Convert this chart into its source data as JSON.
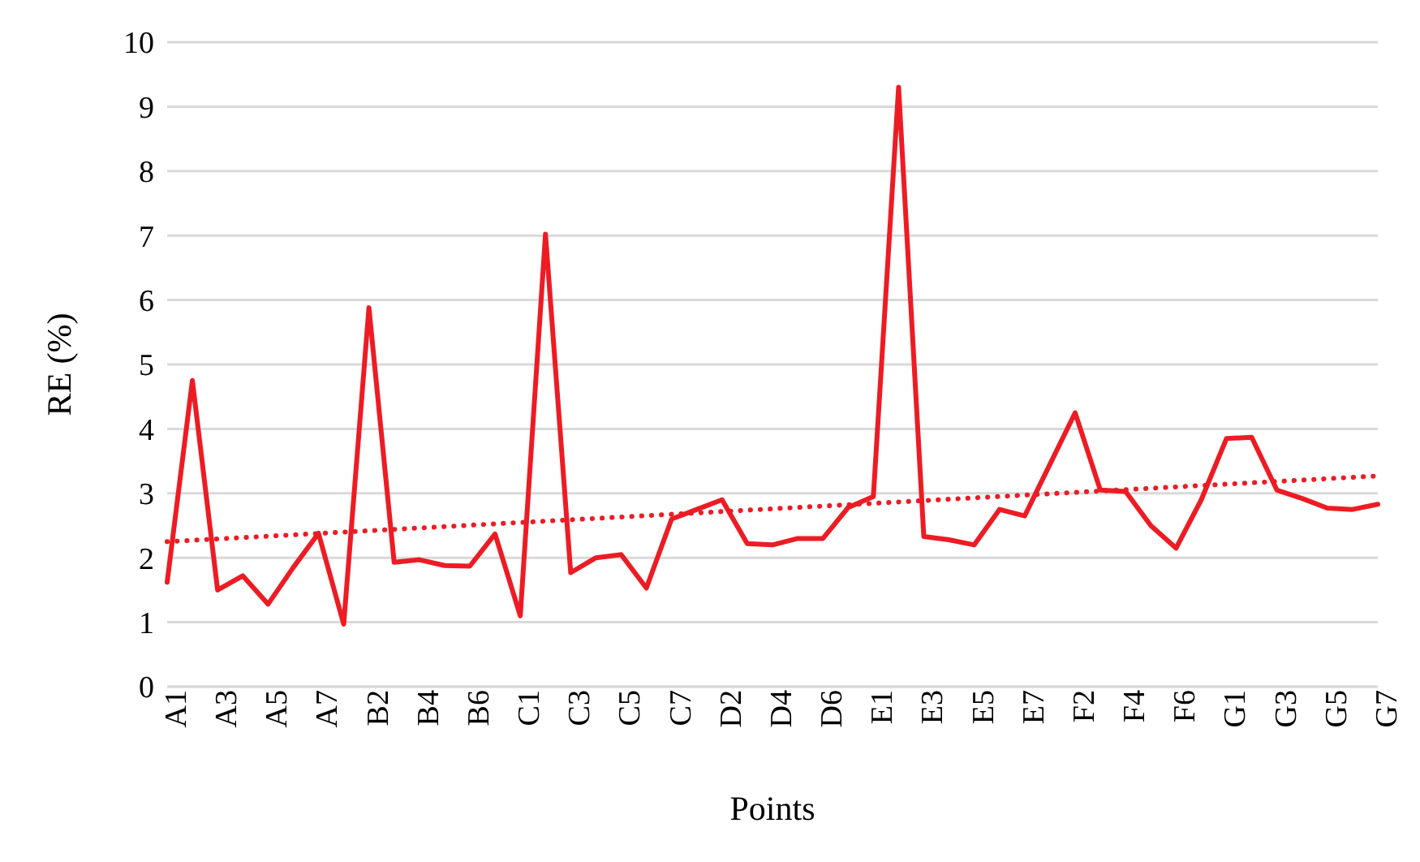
{
  "chart_data": {
    "type": "line",
    "xlabel": "Points",
    "ylabel": "RE (%)",
    "categories": [
      "A1",
      null,
      "A3",
      null,
      "A5",
      null,
      "A7",
      null,
      "B2",
      null,
      "B4",
      null,
      "B6",
      null,
      "C1",
      null,
      "C3",
      null,
      "C5",
      null,
      "C7",
      null,
      "D2",
      null,
      "D4",
      null,
      "D6",
      null,
      "E1",
      null,
      "E3",
      null,
      "E5",
      null,
      "E7",
      null,
      "F2",
      null,
      "F4",
      null,
      "F6",
      null,
      "G1",
      null,
      "G3",
      null,
      "G5",
      null,
      "G7"
    ],
    "series": [
      {
        "color": "#ed1c24",
        "line_style": "solid",
        "values": [
          1.62,
          4.75,
          1.5,
          1.72,
          1.28,
          1.85,
          2.38,
          0.97,
          5.88,
          1.93,
          1.97,
          1.88,
          1.87,
          2.37,
          1.1,
          7.02,
          1.77,
          2.0,
          2.05,
          1.53,
          2.6,
          2.75,
          2.9,
          2.22,
          2.2,
          2.3,
          2.3,
          2.78,
          2.95,
          9.3,
          2.33,
          2.28,
          2.2,
          2.75,
          2.65,
          3.45,
          4.25,
          3.05,
          3.03,
          2.5,
          2.15,
          2.9,
          3.85,
          3.87,
          3.05,
          2.92,
          2.77,
          2.75,
          2.83
        ]
      },
      {
        "color": "#ed1c24",
        "line_style": "dotted",
        "x": [
          "A1",
          "G7"
        ],
        "values": [
          2.25,
          3.27
        ]
      }
    ],
    "ylim": [
      0,
      10
    ],
    "yticks": [
      0,
      1,
      2,
      3,
      4,
      5,
      6,
      7,
      8,
      9,
      10
    ],
    "grid": "y",
    "marker": "none"
  }
}
